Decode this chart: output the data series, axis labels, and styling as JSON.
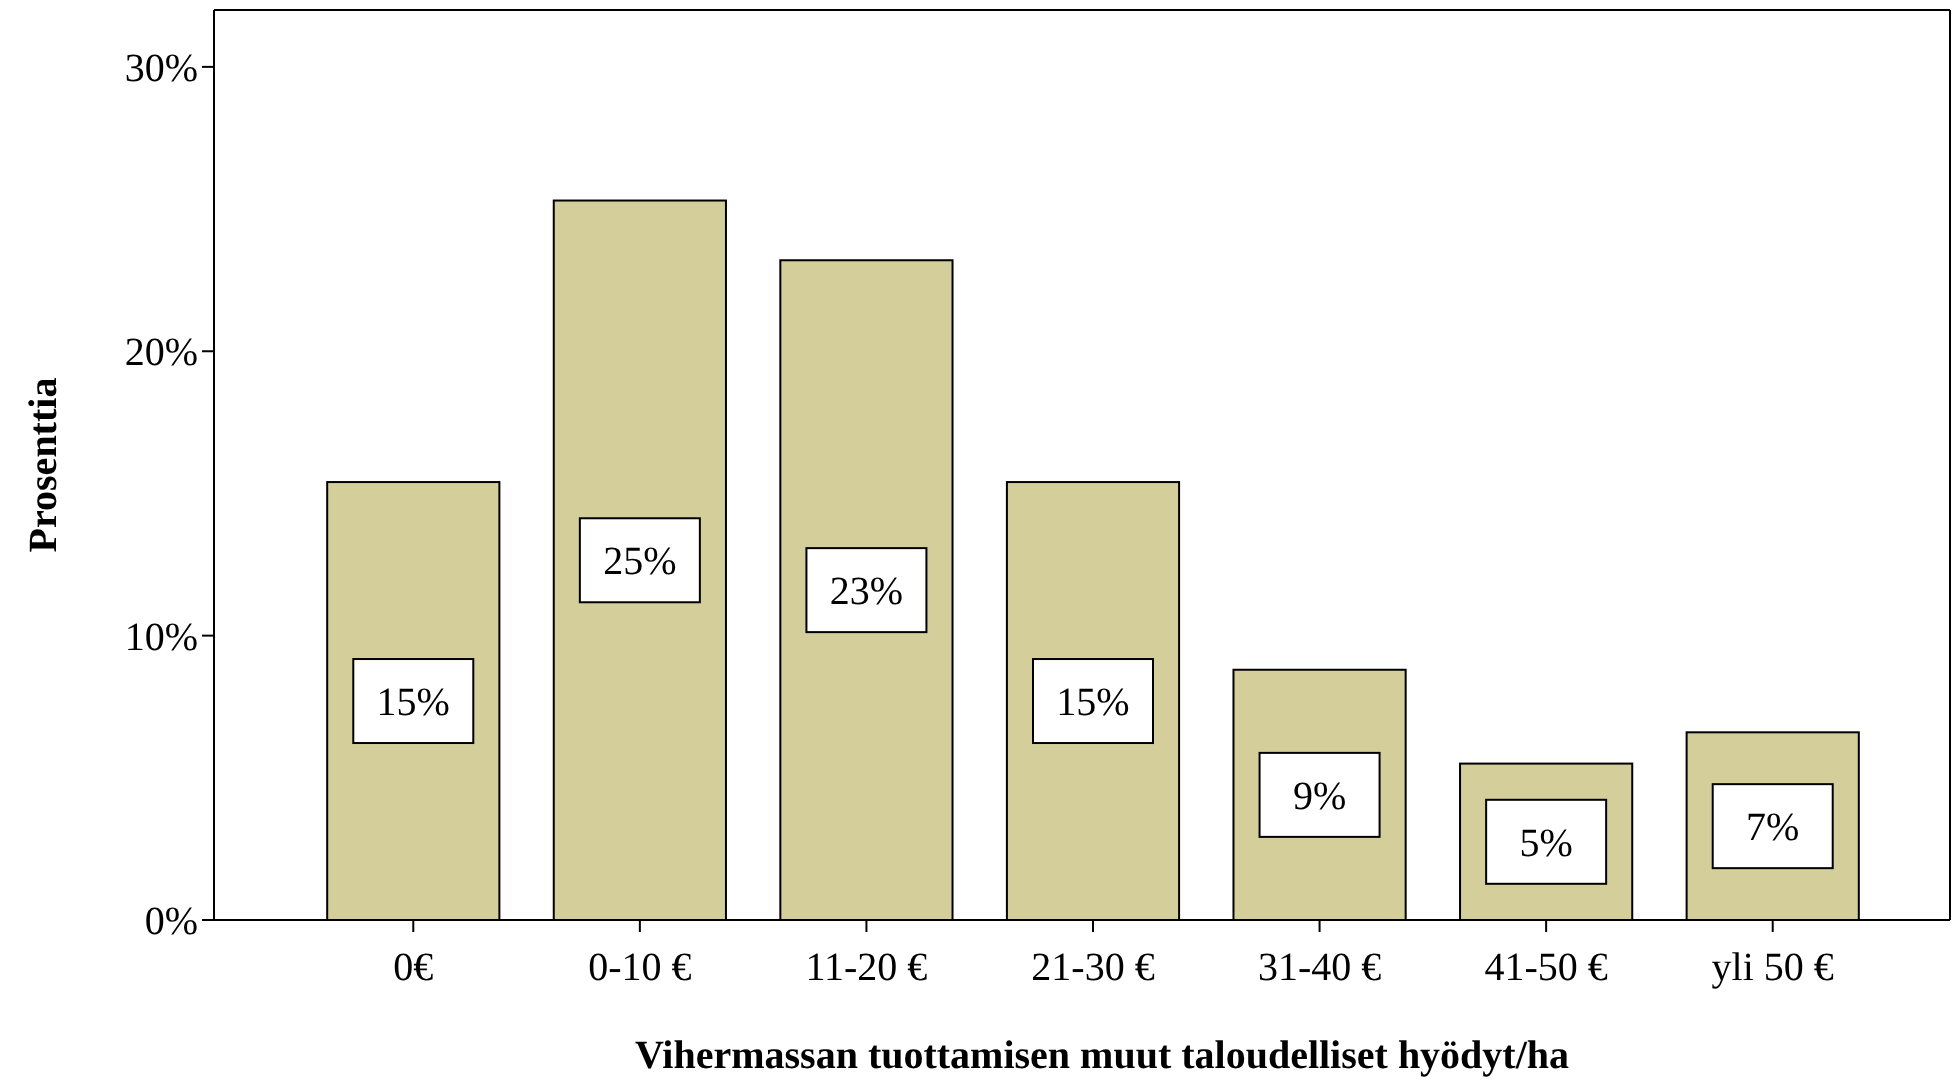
{
  "chart_data": {
    "type": "bar",
    "xlabel": "Vihermassan tuottamisen muut taloudelliset hyödyt/ha",
    "ylabel": "Prosenttia",
    "categories": [
      "0€",
      "0-10 €",
      "11-20 €",
      "21-30 €",
      "31-40 €",
      "41-50 €",
      "yli 50 €"
    ],
    "values": [
      15.4,
      25.3,
      23.2,
      15.4,
      8.8,
      5.5,
      6.6
    ],
    "value_labels": [
      "15%",
      "25%",
      "23%",
      "15%",
      "9%",
      "5%",
      "7%"
    ],
    "color": "#d3ce9a",
    "ylim": [
      0,
      32
    ],
    "yticks": [
      {
        "value": 0,
        "label": "0%"
      },
      {
        "value": 10,
        "label": "10%"
      },
      {
        "value": 20,
        "label": "20%"
      },
      {
        "value": 30,
        "label": "30%"
      }
    ],
    "grid": false
  }
}
